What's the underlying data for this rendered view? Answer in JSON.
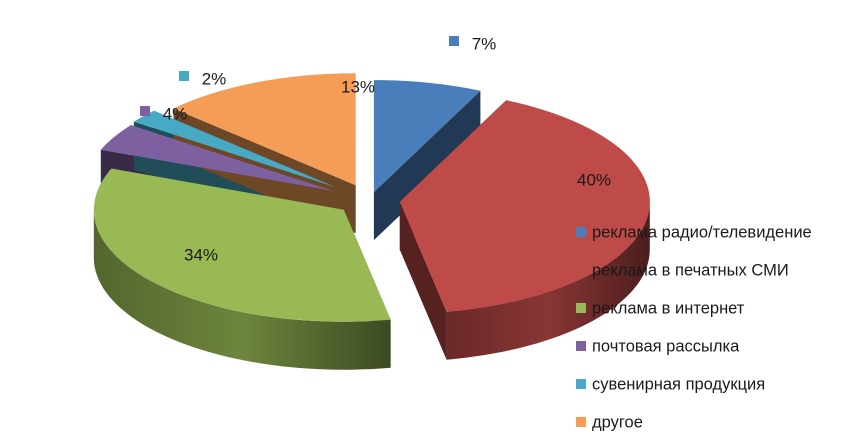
{
  "chart_data": {
    "type": "pie",
    "style": "3d-exploded",
    "legend_position": "right",
    "categories": [
      "реклама радио/телевидение",
      "реклама в печатных СМИ",
      "реклама в интернет",
      "почтовая рассылка",
      "сувенирная продукция",
      "другое"
    ],
    "values": [
      7,
      40,
      34,
      4,
      2,
      13
    ],
    "labels": [
      "7%",
      "40%",
      "34%",
      "4%",
      "2%",
      "13%"
    ],
    "colors": [
      "#4a7ebb",
      "#be4b48",
      "#98b954",
      "#7d60a0",
      "#46aac4",
      "#f59d56"
    ],
    "label_markers": [
      true,
      false,
      false,
      true,
      true,
      false
    ]
  }
}
